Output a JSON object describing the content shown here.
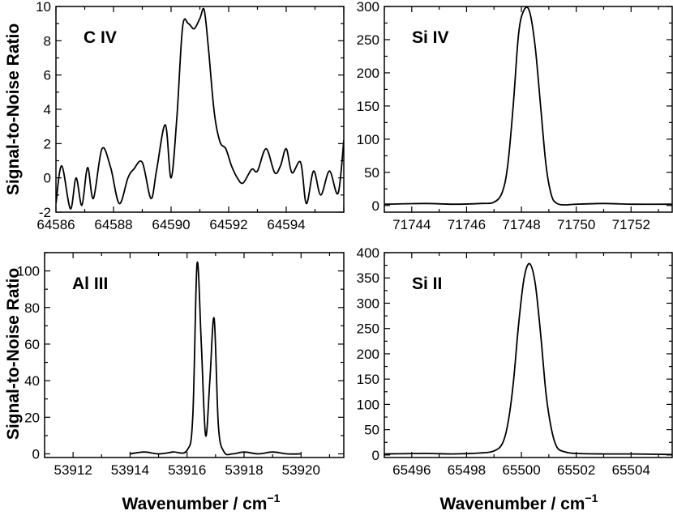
{
  "figure": {
    "ylabel": "Signal-to-Noise Ratio",
    "xlabel": "Wavenumber / cm",
    "xlabel_superscript": "−1"
  },
  "chart_data": [
    {
      "type": "line",
      "label": "C IV",
      "xlim": [
        64586,
        64596
      ],
      "ylim": [
        -2,
        10
      ],
      "xticks": [
        64586,
        64588,
        64590,
        64592,
        64594
      ],
      "yticks": [
        -2,
        0,
        2,
        4,
        6,
        8,
        10
      ],
      "series": [
        {
          "x": [
            64586,
            64586.2,
            64586.5,
            64586.7,
            64586.9,
            64587.1,
            64587.3,
            64587.6,
            64587.9,
            64588.2,
            64588.5,
            64588.7,
            64589.0,
            64589.3,
            64589.5,
            64589.8,
            64590.0,
            64590.2,
            64590.4,
            64590.6,
            64590.8,
            64591.0,
            64591.15,
            64591.3,
            64591.5,
            64591.7,
            64591.9,
            64592.1,
            64592.3,
            64592.5,
            64592.8,
            64593.0,
            64593.3,
            64593.6,
            64593.8,
            64594.0,
            64594.2,
            64594.5,
            64594.7,
            64594.95,
            64595.2,
            64595.5,
            64595.8,
            64596
          ],
          "y": [
            -1.5,
            0.7,
            -1.8,
            0.0,
            -1.6,
            0.6,
            -1.2,
            1.7,
            0.6,
            -1.5,
            0.0,
            0.5,
            0.9,
            -1.2,
            0.5,
            3.1,
            0.0,
            3.5,
            8.8,
            9.0,
            8.7,
            9.3,
            9.8,
            7.5,
            3.8,
            2.1,
            1.7,
            0.7,
            0.0,
            -0.3,
            0.5,
            0.4,
            1.7,
            0.3,
            0.7,
            1.7,
            0.3,
            0.9,
            -1.5,
            0.4,
            -1.0,
            0.4,
            -0.9,
            2.2
          ]
        }
      ]
    },
    {
      "type": "line",
      "label": "Si IV",
      "xlim": [
        71743,
        71753.5
      ],
      "ylim": [
        -10,
        300
      ],
      "xticks": [
        71744,
        71746,
        71748,
        71750,
        71752
      ],
      "yticks": [
        0,
        50,
        100,
        150,
        200,
        250,
        300
      ],
      "series": [
        {
          "x": [
            71743,
            71744.5,
            71745.5,
            71746.5,
            71747.0,
            71747.3,
            71747.5,
            71747.7,
            71747.9,
            71748.1,
            71748.3,
            71748.5,
            71748.7,
            71748.9,
            71749.1,
            71749.3,
            71749.6,
            71750.0,
            71751.0,
            71752.0,
            71753.5
          ],
          "y": [
            2,
            3,
            2,
            3,
            5,
            20,
            60,
            150,
            260,
            295,
            292,
            240,
            150,
            60,
            15,
            3,
            1,
            2,
            3,
            2,
            2
          ]
        }
      ]
    },
    {
      "type": "line",
      "label": "Al III",
      "xlim": [
        53911,
        53921.5
      ],
      "ylim": [
        -2,
        110
      ],
      "xticks": [
        53912,
        53914,
        53916,
        53918,
        53920
      ],
      "yticks": [
        0,
        20,
        40,
        60,
        80,
        100
      ],
      "series": [
        {
          "x": [
            53914.0,
            53914.5,
            53915.0,
            53915.5,
            53916.0,
            53916.2,
            53916.35,
            53916.5,
            53916.65,
            53916.8,
            53916.95,
            53917.1,
            53917.3,
            53917.6,
            53918.0,
            53918.5,
            53919.0,
            53919.5,
            53920.0
          ],
          "y": [
            0,
            1,
            0,
            1,
            2,
            20,
            104,
            60,
            10,
            40,
            74,
            15,
            1,
            0,
            1,
            0,
            1,
            0,
            0
          ]
        }
      ]
    },
    {
      "type": "line",
      "label": "Si II",
      "xlim": [
        65495,
        65505.5
      ],
      "ylim": [
        -5,
        400
      ],
      "xticks": [
        65496,
        65498,
        65500,
        65502,
        65504
      ],
      "yticks": [
        0,
        50,
        100,
        150,
        200,
        250,
        300,
        350,
        400
      ],
      "series": [
        {
          "x": [
            65495,
            65496.5,
            65497.5,
            65498.5,
            65499.0,
            65499.3,
            65499.5,
            65499.7,
            65499.9,
            65500.1,
            65500.3,
            65500.5,
            65500.7,
            65500.9,
            65501.1,
            65501.3,
            65501.6,
            65502.0,
            65503.0,
            65504.0,
            65505.5
          ],
          "y": [
            2,
            3,
            2,
            4,
            8,
            22,
            60,
            140,
            260,
            350,
            378,
            340,
            240,
            120,
            50,
            15,
            6,
            3,
            2,
            2,
            1
          ]
        }
      ]
    }
  ]
}
